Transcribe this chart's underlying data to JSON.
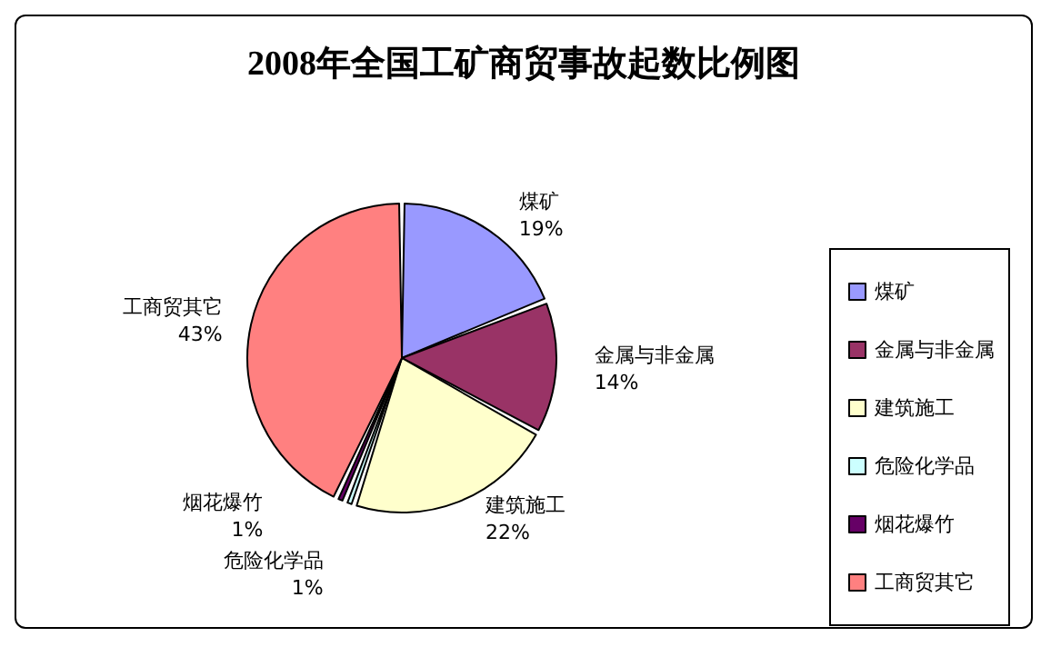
{
  "chart_data": {
    "type": "pie",
    "title": "2008年全国工矿商贸事故起数比例图",
    "categories": [
      "煤矿",
      "金属与非金属",
      "建筑施工",
      "危险化学品",
      "烟花爆竹",
      "工商贸其它"
    ],
    "values": [
      19,
      14,
      22,
      1,
      1,
      43
    ],
    "colors": [
      "#9999ff",
      "#993366",
      "#ffffcc",
      "#ccffff",
      "#660066",
      "#ff8080"
    ],
    "value_labels": [
      "19%",
      "14%",
      "22%",
      "1%",
      "1%",
      "43%"
    ],
    "legend": "right"
  }
}
